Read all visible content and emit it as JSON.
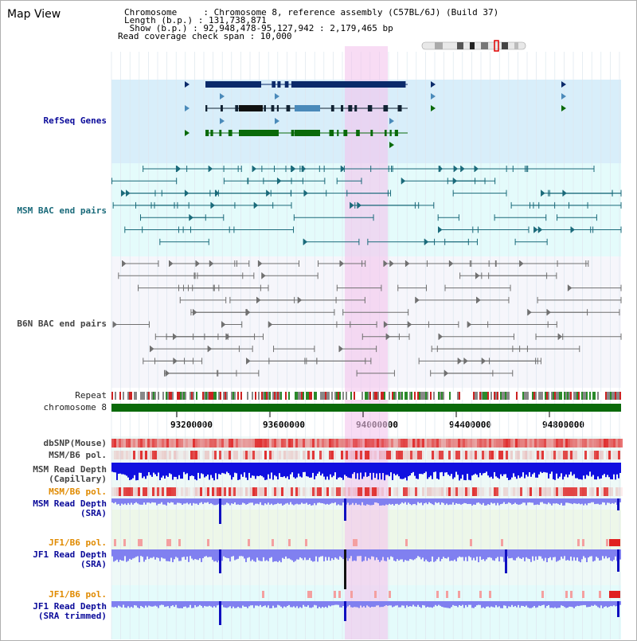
{
  "page_title": "Map View",
  "header": {
    "chromosome_line": "Chromosome     : Chromosome 8, reference assembly (C57BL/6J) (Build 37)",
    "length_line": "Length (b.p.) : 131,738,871",
    "show_line": " Show (b.p.) : 92,948,478-95,127,942 : 2,179,465 bp",
    "coverage_line": "Read coverage check span : 10,000"
  },
  "tracks": {
    "refseq": "RefSeq Genes",
    "msm_bac": "MSM BAC end pairs",
    "b6n_bac": "B6N BAC end pairs",
    "repeat": "Repeat",
    "chromosome": "chromosome 8",
    "dbsnp": "dbSNP(Mouse)",
    "msm_b6_pol": "MSM/B6 pol.",
    "msm_depth_cap": "MSM Read Depth\n(Capillary)",
    "msm_b6_pol_2": "MSM/B6 pol.",
    "msm_depth_sra": "MSM Read Depth\n(SRA)",
    "jf1_b6_pol": "JF1/B6 pol.",
    "jf1_depth_sra": "JF1 Read Depth\n(SRA)",
    "jf1_b6_pol_2": "JF1/B6 pol.",
    "jf1_depth_trim": "JF1 Read Depth\n(SRA trimmed)"
  },
  "axis_ticks": [
    "93200000",
    "93600000",
    "94000000",
    "94400000",
    "94800000"
  ],
  "colors": {
    "refseq_bg": "#d8eefa",
    "msm_bg": "#e4fbfb",
    "b6n_bg": "#f6f6fb",
    "highlight": "#f4c4ec",
    "gene_dark": "#0a2a6a",
    "gene_mid": "#4a8aba",
    "gene_green": "#0a6a0a",
    "bac_teal": "#1a6a7a",
    "bac_grey": "#707070",
    "chrom_green": "#0a6a0a",
    "depth_blue": "#1010e0",
    "depth_lilac": "#8080f0",
    "pol_red": "#e03030"
  }
}
